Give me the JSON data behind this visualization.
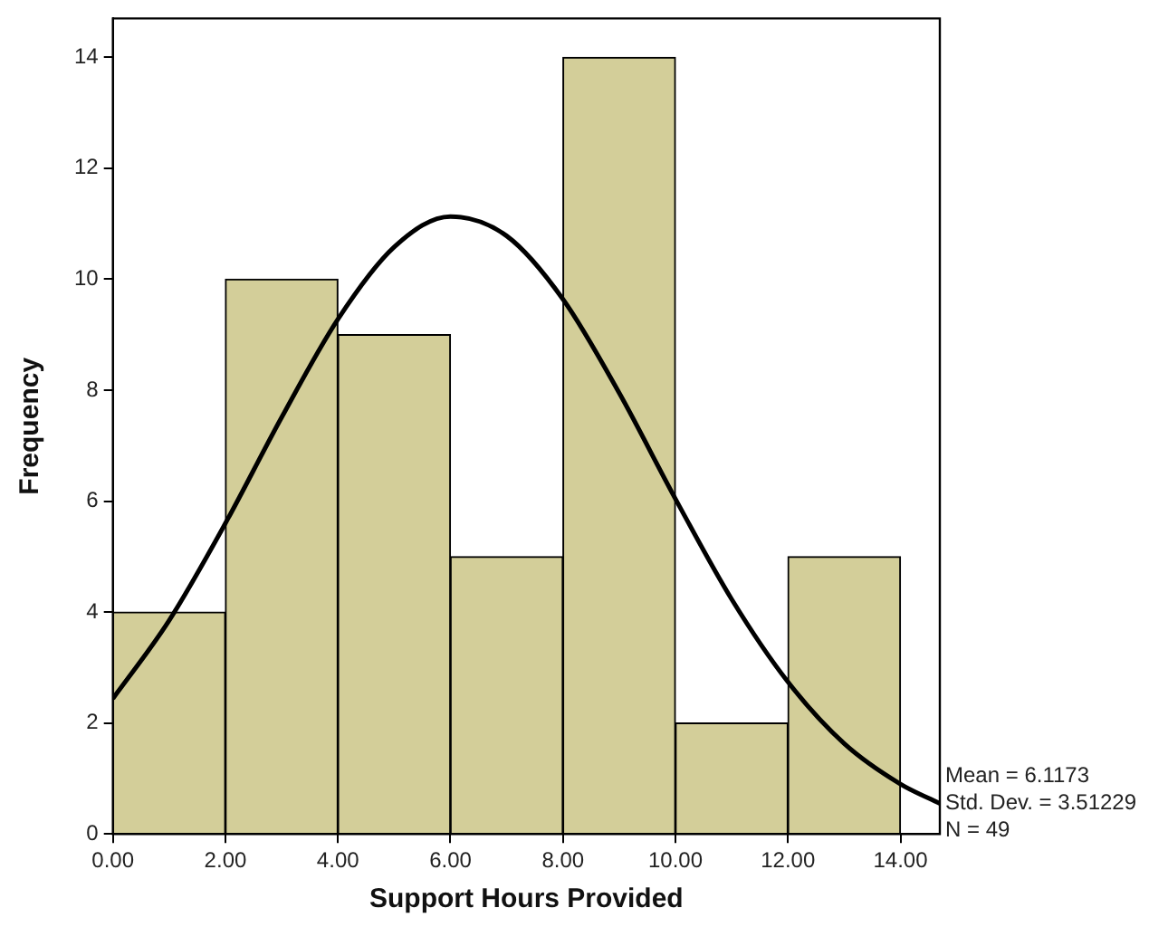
{
  "chart_data": {
    "type": "histogram",
    "xlabel": "Support Hours Provided",
    "ylabel": "Frequency",
    "bins": [
      0,
      2,
      4,
      6,
      8,
      10,
      12,
      14
    ],
    "values": [
      4,
      10,
      9,
      5,
      14,
      2,
      5
    ],
    "color": "#d3ce99",
    "series": [
      {
        "type": "line",
        "color": "#000000",
        "x": [
          0,
          1,
          2,
          3,
          4,
          5,
          6,
          7,
          8,
          9,
          10,
          11,
          12,
          13,
          14,
          14.7
        ],
        "values": [
          2.44,
          3.85,
          5.6,
          7.51,
          9.28,
          10.58,
          11.13,
          10.78,
          9.64,
          7.95,
          6.04,
          4.23,
          2.74,
          1.63,
          0.9,
          0.55
        ]
      }
    ],
    "xlim": [
      0,
      14.7
    ],
    "xticks": [
      {
        "value": 0,
        "label": "0.00"
      },
      {
        "value": 2,
        "label": "2.00"
      },
      {
        "value": 4,
        "label": "4.00"
      },
      {
        "value": 6,
        "label": "6.00"
      },
      {
        "value": 8,
        "label": "8.00"
      },
      {
        "value": 10,
        "label": "10.00"
      },
      {
        "value": 12,
        "label": "12.00"
      },
      {
        "value": 14,
        "label": "14.00"
      }
    ],
    "ylim": [
      0,
      14.7
    ],
    "yticks": [
      0,
      2,
      4,
      6,
      8,
      10,
      12,
      14
    ],
    "annotations": [
      "Mean = 6.1173",
      "Std. Dev. = 3.51229",
      "N = 49"
    ],
    "grid": false,
    "legend": false
  }
}
